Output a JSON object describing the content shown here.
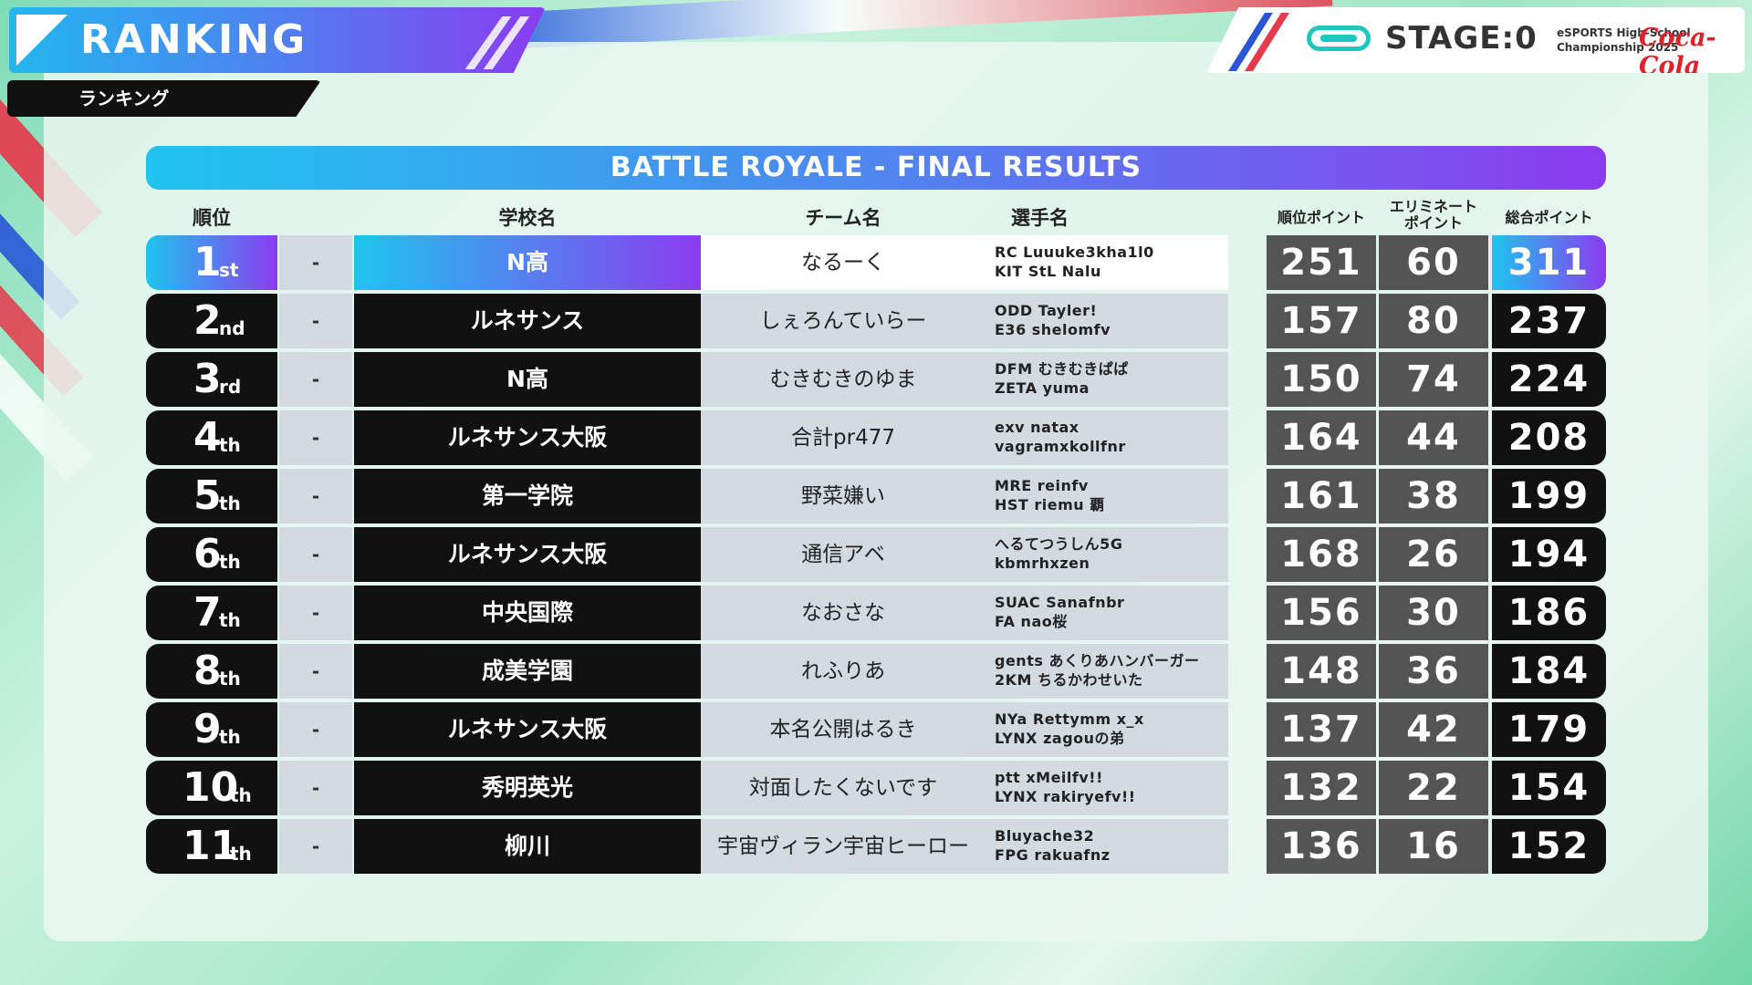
{
  "header": {
    "title": "RANKING",
    "subtitle": "ランキング"
  },
  "brand": {
    "stage": "STAGE:0",
    "esports_line": "eSPORTS High-School\nChampionship 2025",
    "sponsor": "Coca-Cola"
  },
  "banner": "BATTLE ROYALE - FINAL RESULTS",
  "columns": {
    "rank": "順位",
    "school": "学校名",
    "team": "チーム名",
    "players": "選手名",
    "placement_points": "順位ポイント",
    "elimination_points": "エリミネート\nポイント",
    "total_points": "総合ポイント"
  },
  "colors": {
    "accent_start": "#1fc4ef",
    "accent_end": "#8b3cef",
    "row_dark": "#111111",
    "points_gray": "#545454",
    "row_light": "#d3dbe0"
  },
  "rows": [
    {
      "rank": "1",
      "suffix": "st",
      "prev": "-",
      "school": "N高",
      "team": "なるーく",
      "p1": "RC Luuuke3kha1l0",
      "p2": "KIT StL Nalu",
      "pl": "251",
      "el": "60",
      "total": "311"
    },
    {
      "rank": "2",
      "suffix": "nd",
      "prev": "-",
      "school": "ルネサンス",
      "team": "しぇろんていらー",
      "p1": "ODD Tayler!",
      "p2": "E36 shelomfv",
      "pl": "157",
      "el": "80",
      "total": "237"
    },
    {
      "rank": "3",
      "suffix": "rd",
      "prev": "-",
      "school": "N高",
      "team": "むきむきのゆま",
      "p1": "DFM むきむきぱぱ",
      "p2": "ZETA yuma",
      "pl": "150",
      "el": "74",
      "total": "224"
    },
    {
      "rank": "4",
      "suffix": "th",
      "prev": "-",
      "school": "ルネサンス大阪",
      "team": "合計pr477",
      "p1": "exv natax",
      "p2": "vagramxkollfnr",
      "pl": "164",
      "el": "44",
      "total": "208"
    },
    {
      "rank": "5",
      "suffix": "th",
      "prev": "-",
      "school": "第一学院",
      "team": "野菜嫌い",
      "p1": "MRE reinfv",
      "p2": "HST riemu 覇",
      "pl": "161",
      "el": "38",
      "total": "199"
    },
    {
      "rank": "6",
      "suffix": "th",
      "prev": "-",
      "school": "ルネサンス大阪",
      "team": "通信アベ",
      "p1": "へるてつうしん5G",
      "p2": "kbmrhxzen",
      "pl": "168",
      "el": "26",
      "total": "194"
    },
    {
      "rank": "7",
      "suffix": "th",
      "prev": "-",
      "school": "中央国際",
      "team": "なおさな",
      "p1": "SUAC Sanafnbr",
      "p2": "FA nao桜",
      "pl": "156",
      "el": "30",
      "total": "186"
    },
    {
      "rank": "8",
      "suffix": "th",
      "prev": "-",
      "school": "成美学園",
      "team": "れふりあ",
      "p1": "gents あくりあハンバーガー",
      "p2": "2KM ちるかわせいた",
      "pl": "148",
      "el": "36",
      "total": "184"
    },
    {
      "rank": "9",
      "suffix": "th",
      "prev": "-",
      "school": "ルネサンス大阪",
      "team": "本名公開はるき",
      "p1": "NYa Rettymm x_x",
      "p2": "LYNX zagouの弟",
      "pl": "137",
      "el": "42",
      "total": "179"
    },
    {
      "rank": "10",
      "suffix": "th",
      "prev": "-",
      "school": "秀明英光",
      "team": "対面したくないです",
      "p1": "ptt xMeilfv!!",
      "p2": "LYNX rakiryefv!!",
      "pl": "132",
      "el": "22",
      "total": "154"
    },
    {
      "rank": "11",
      "suffix": "th",
      "prev": "-",
      "school": "柳川",
      "team": "宇宙ヴィラン宇宙ヒーロー",
      "p1": "Bluyache32",
      "p2": "FPG rakuafnz",
      "pl": "136",
      "el": "16",
      "total": "152"
    }
  ]
}
